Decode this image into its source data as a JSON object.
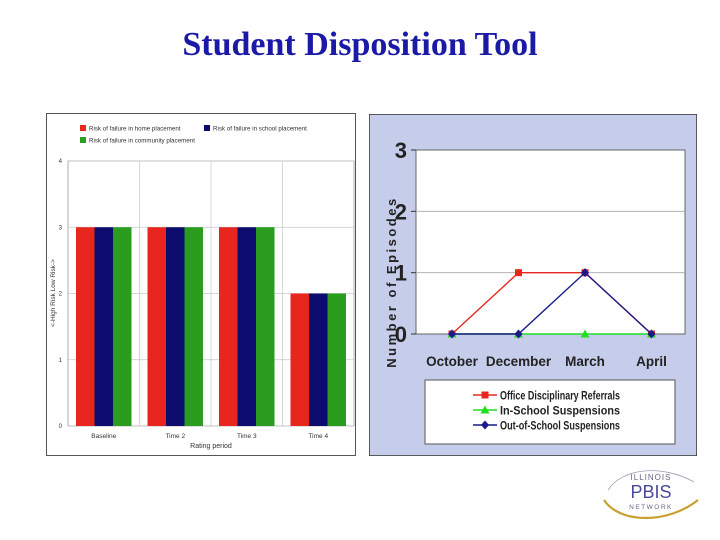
{
  "page": {
    "title": "Student Disposition Tool"
  },
  "chart_data": [
    {
      "type": "bar",
      "title": "",
      "categories": [
        "Baseline",
        "Time 2",
        "Time 3",
        "Time 4"
      ],
      "series": [
        {
          "name": "Risk of failure in home placement",
          "color": "#e8261f",
          "values": [
            3,
            3,
            3,
            2
          ]
        },
        {
          "name": "Risk of failure in school placement",
          "color": "#0c0c6e",
          "values": [
            3,
            3,
            3,
            2
          ]
        },
        {
          "name": "Risk of failure in community placement",
          "color": "#2a9c1e",
          "values": [
            3,
            3,
            3,
            2
          ]
        }
      ],
      "yticks": [
        "0",
        "1",
        "2",
        "3",
        "4"
      ],
      "ylim": [
        0,
        4
      ],
      "xlabel": "Rating period",
      "ylabel": "<-High Risk  Low Risk->",
      "legend": "top",
      "grid": true
    },
    {
      "type": "line",
      "title": "",
      "categories": [
        "October",
        "December",
        "March",
        "April"
      ],
      "series": [
        {
          "name": "Office Disciplinary Referrals",
          "color": "#e8261f",
          "marker": "square",
          "values": [
            0,
            1,
            1,
            0
          ]
        },
        {
          "name": "In-School Suspensions",
          "color": "#22dd22",
          "marker": "triangle",
          "values": [
            0,
            0,
            0,
            0
          ]
        },
        {
          "name": "Out-of-School Suspensions",
          "color": "#1a1a8c",
          "marker": "diamond",
          "values": [
            0,
            0,
            1,
            0
          ]
        }
      ],
      "yticks": [
        "0",
        "1",
        "2",
        "3"
      ],
      "ylim": [
        0,
        3
      ],
      "ylabel": "Number of Episodes",
      "legend": "bottom",
      "grid": true,
      "background": "#c5cdea"
    }
  ],
  "logo": {
    "line1": "ILLINOIS",
    "line2": "PBIS",
    "line3": "NETWORK"
  }
}
